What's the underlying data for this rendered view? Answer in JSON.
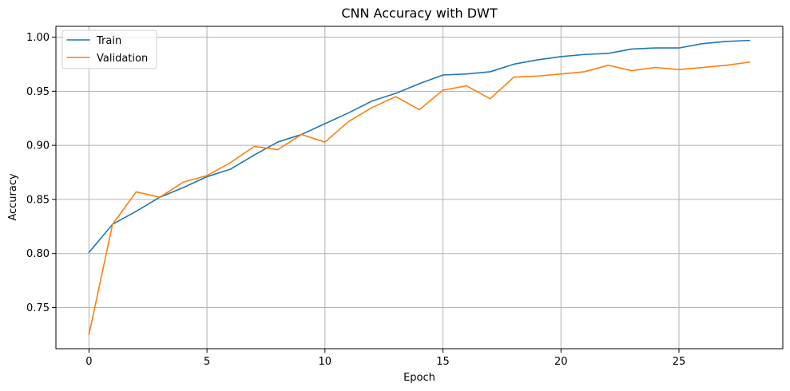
{
  "chart_data": {
    "type": "line",
    "title": "CNN Accuracy with DWT",
    "xlabel": "Epoch",
    "ylabel": "Accuracy",
    "xlim": [
      -1.4,
      29.4
    ],
    "ylim": [
      0.712,
      1.01
    ],
    "xticks": [
      0,
      5,
      10,
      15,
      20,
      25
    ],
    "yticks": [
      0.75,
      0.8,
      0.85,
      0.9,
      0.95,
      1.0
    ],
    "grid": true,
    "legend_position": "top-left",
    "x": [
      0,
      1,
      2,
      3,
      4,
      5,
      6,
      7,
      8,
      9,
      10,
      11,
      12,
      13,
      14,
      15,
      16,
      17,
      18,
      19,
      20,
      21,
      22,
      23,
      24,
      25,
      26,
      27,
      28
    ],
    "series": [
      {
        "name": "Train",
        "color": "#1f77b4",
        "values": [
          0.801,
          0.827,
          0.839,
          0.852,
          0.861,
          0.871,
          0.878,
          0.891,
          0.903,
          0.91,
          0.92,
          0.93,
          0.941,
          0.948,
          0.957,
          0.965,
          0.966,
          0.968,
          0.975,
          0.979,
          0.982,
          0.984,
          0.985,
          0.989,
          0.99,
          0.99,
          0.994,
          0.996,
          0.997
        ]
      },
      {
        "name": "Validation",
        "color": "#ff7f0e",
        "values": [
          0.725,
          0.827,
          0.857,
          0.852,
          0.866,
          0.872,
          0.884,
          0.899,
          0.896,
          0.91,
          0.903,
          0.922,
          0.935,
          0.945,
          0.933,
          0.951,
          0.955,
          0.943,
          0.963,
          0.964,
          0.966,
          0.968,
          0.974,
          0.969,
          0.972,
          0.97,
          0.972,
          0.974,
          0.977
        ]
      }
    ]
  }
}
